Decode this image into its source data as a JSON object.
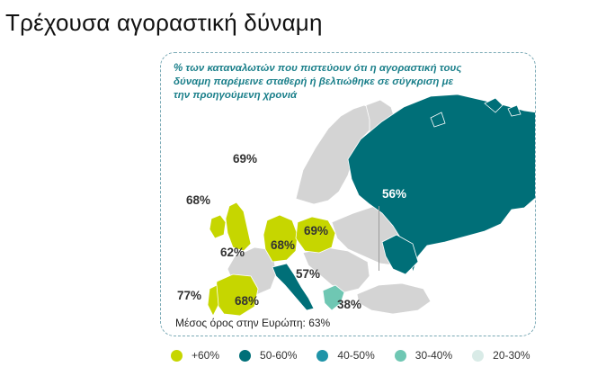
{
  "title": "Τρέχουσα αγοραστική δύναμη",
  "map": {
    "subtitle_lines": [
      "% των καταναλωτών  που πιστεύουν  ότι η αγοραστική  τους",
      "δύναμη παρέμεινε  σταθερή ή βελτιώθηκε  σε σύγκριση  με",
      "την προηγούμενη χρονιά"
    ],
    "average_label": "Μέσος όρος στην  Ευρώπη: 63%",
    "values": {
      "norway": "69%",
      "ireland": "68%",
      "uk": "62%",
      "germany": "68%",
      "poland": "69%",
      "russia": "56%",
      "italy": "57%",
      "portugal": "77%",
      "spain": "68%",
      "greece": "38%"
    },
    "colors": {
      "above_60": "#c6d600",
      "c50_60": "#006f78",
      "c40_50": "#1f94a8",
      "c30_40": "#6fc7b3",
      "c20_30": "#d9ebe7",
      "no_data": "#d4d4d4"
    }
  },
  "legend": [
    {
      "label": "+60%",
      "color": "#c6d600"
    },
    {
      "label": "50-60%",
      "color": "#006f78"
    },
    {
      "label": "40-50%",
      "color": "#1f94a8"
    },
    {
      "label": "30-40%",
      "color": "#6fc7b3"
    },
    {
      "label": "20-30%",
      "color": "#d9ebe7"
    }
  ]
}
